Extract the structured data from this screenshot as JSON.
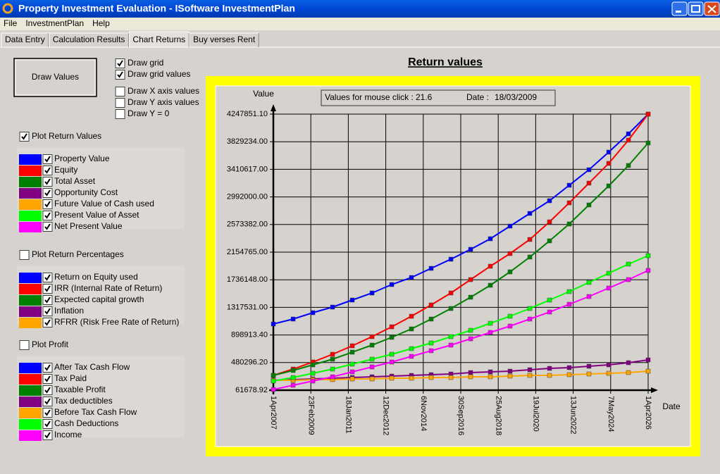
{
  "window": {
    "title": "Property Investment Evaluation - ISoftware InvestmentPlan"
  },
  "menu": [
    "File",
    "InvestmentPlan",
    "Help"
  ],
  "tabs": [
    {
      "label": "Data Entry",
      "active": false
    },
    {
      "label": "Calculation Results",
      "active": false
    },
    {
      "label": "Chart Returns",
      "active": true
    },
    {
      "label": "Buy verses Rent",
      "active": false
    }
  ],
  "controls": {
    "draw_button": "Draw Values",
    "options": [
      {
        "label": "Draw grid",
        "checked": true
      },
      {
        "label": "Draw grid values",
        "checked": true
      },
      {
        "label": "Draw X axis values",
        "checked": false
      },
      {
        "label": "Draw Y axis values",
        "checked": false
      },
      {
        "label": "Draw Y = 0",
        "checked": false
      }
    ]
  },
  "groups": [
    {
      "label": "Plot Return Values",
      "checked": true
    },
    {
      "label": "Plot Return Percentages",
      "checked": false,
      "items": [
        {
          "name": "Return on Equity used",
          "color": "#0000ff",
          "checked": true
        },
        {
          "name": "IRR (Internal Rate of Return)",
          "color": "#ff0000",
          "checked": true
        },
        {
          "name": "Expected capital growth",
          "color": "#008000",
          "checked": true
        },
        {
          "name": "Inflation",
          "color": "#800080",
          "checked": true
        },
        {
          "name": "RFRR (Risk Free Rate of Return)",
          "color": "#ffa500",
          "checked": true
        }
      ]
    },
    {
      "label": "Plot Profit",
      "checked": false,
      "items": [
        {
          "name": "After Tax Cash Flow",
          "color": "#0000ff",
          "checked": true
        },
        {
          "name": "Tax Paid",
          "color": "#ff0000",
          "checked": true
        },
        {
          "name": "Taxable Profit",
          "color": "#008000",
          "checked": true
        },
        {
          "name": "Tax deductibles",
          "color": "#800080",
          "checked": true
        },
        {
          "name": "Before Tax Cash Flow",
          "color": "#ffa500",
          "checked": true
        },
        {
          "name": "Cash Deductions",
          "color": "#00ff00",
          "checked": true
        },
        {
          "name": "Income",
          "color": "#ff00ff",
          "checked": true
        }
      ]
    }
  ],
  "chart_data": {
    "type": "line",
    "title": "Return values",
    "ylabel": "Value",
    "xlabel": "Date",
    "grid": true,
    "readout": {
      "label": "Values for mouse click :",
      "value": 21.6,
      "date_label": "Date :",
      "date": "18/03/2009"
    },
    "x": [
      "2007-04-01",
      "2008-04-01",
      "2009-04-01",
      "2010-04-01",
      "2011-04-01",
      "2012-04-01",
      "2013-04-01",
      "2014-04-01",
      "2015-04-01",
      "2016-04-01",
      "2017-04-01",
      "2018-04-01",
      "2019-04-01",
      "2020-04-01",
      "2021-04-01",
      "2022-04-01",
      "2023-04-01",
      "2024-04-01",
      "2025-04-01",
      "2026-04-01"
    ],
    "xlim": [
      "2007-04-01",
      "2026-04-01"
    ],
    "xticks": [
      {
        "value": "2007-04-01",
        "label": "1Apr2007"
      },
      {
        "value": "2009-02-23",
        "label": "23Feb2009"
      },
      {
        "value": "2011-01-18",
        "label": "18Jan2011"
      },
      {
        "value": "2012-12-12",
        "label": "12Dec2012"
      },
      {
        "value": "2014-11-06",
        "label": "6Nov2014"
      },
      {
        "value": "2016-09-30",
        "label": "30Sep2016"
      },
      {
        "value": "2018-08-25",
        "label": "25Aug2018"
      },
      {
        "value": "2020-07-19",
        "label": "19Jul2020"
      },
      {
        "value": "2022-06-13",
        "label": "13Jun2022"
      },
      {
        "value": "2024-05-07",
        "label": "7May2024"
      },
      {
        "value": "2026-04-01",
        "label": "1Apr2026"
      }
    ],
    "ylim": [
      61678.92,
      4247851.1
    ],
    "yticks": [
      {
        "value": 61678.92,
        "label": "61678.92"
      },
      {
        "value": 480296.2,
        "label": "480296.20"
      },
      {
        "value": 898913.4,
        "label": "898913.40"
      },
      {
        "value": 1317531,
        "label": "1317531.00"
      },
      {
        "value": 1736148,
        "label": "1736148.00"
      },
      {
        "value": 2154765,
        "label": "2154765.00"
      },
      {
        "value": 2573382,
        "label": "2573382.00"
      },
      {
        "value": 2992000,
        "label": "2992000.00"
      },
      {
        "value": 3410617,
        "label": "3410617.00"
      },
      {
        "value": 3829234,
        "label": "3829234.00"
      },
      {
        "value": 4247851.1,
        "label": "4247851.10"
      }
    ],
    "series": [
      {
        "name": "Property Value",
        "color": "#0000ff",
        "checked": true,
        "values": [
          1065500,
          1140300,
          1236400,
          1321800,
          1428600,
          1535400,
          1663500,
          1770300,
          1909100,
          2047900,
          2197500,
          2357700,
          2549900,
          2742100,
          2934300,
          3169300,
          3404200,
          3671200,
          3948800,
          4247851.1
        ]
      },
      {
        "name": "Equity",
        "color": "#ff0000",
        "checked": true,
        "values": [
          285900,
          382000,
          488800,
          606300,
          734500,
          873300,
          1022800,
          1183000,
          1353800,
          1535400,
          1738300,
          1941200,
          2133400,
          2347000,
          2614000,
          2902300,
          3201300,
          3500300,
          3852700,
          4247851.1
        ]
      },
      {
        "name": "Total Asset",
        "color": "#008000",
        "checked": true,
        "values": [
          285900,
          360700,
          446100,
          531600,
          638300,
          745100,
          862600,
          990700,
          1140300,
          1300400,
          1471300,
          1652800,
          1855700,
          2080000,
          2325600,
          2581900,
          2870300,
          3158600,
          3468300,
          3810000
        ]
      },
      {
        "name": "Opportunity Cost",
        "color": "#800080",
        "checked": true,
        "values": [
          211200,
          221900,
          232500,
          243200,
          253900,
          264600,
          275300,
          285900,
          296600,
          307300,
          328700,
          339300,
          350000,
          371400,
          392700,
          403400,
          424800,
          446100,
          478200,
          520900
        ]
      },
      {
        "name": "Future Value of Cash used",
        "color": "#ffa500",
        "checked": true,
        "values": [
          211200,
          211200,
          221900,
          221900,
          232500,
          232500,
          243200,
          243200,
          253900,
          253900,
          264600,
          264600,
          275300,
          285900,
          285900,
          296600,
          307300,
          317900,
          328700,
          350000
        ]
      },
      {
        "name": "Present Value of Asset",
        "color": "#00ff00",
        "checked": true,
        "values": [
          200500,
          253900,
          317900,
          382000,
          456800,
          531600,
          606300,
          691700,
          777200,
          873300,
          969400,
          1076200,
          1183000,
          1300400,
          1428600,
          1556700,
          1695500,
          1834400,
          1973200,
          2101300
        ]
      },
      {
        "name": "Net Present Value",
        "color": "#ff00ff",
        "checked": true,
        "values": [
          72400,
          136400,
          200500,
          264600,
          339300,
          414100,
          488800,
          574300,
          659700,
          745100,
          841200,
          937400,
          1033500,
          1140300,
          1247000,
          1364500,
          1482000,
          1610100,
          1738300,
          1877100
        ]
      }
    ]
  }
}
